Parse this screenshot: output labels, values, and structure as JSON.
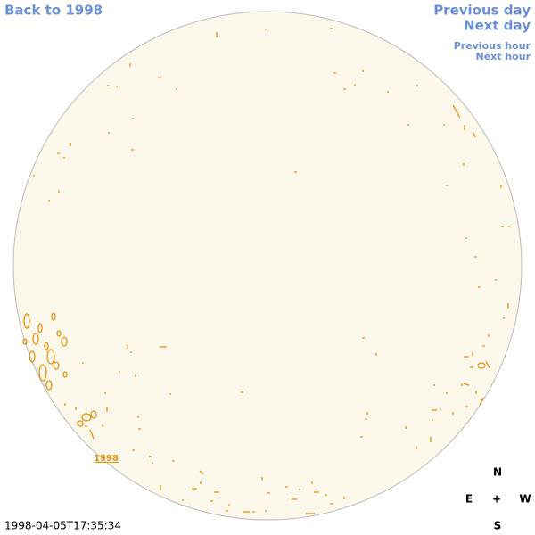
{
  "nav": {
    "back": "Back to 1998",
    "previous_day": "Previous day",
    "next_day": "Next day",
    "previous_hour": "Previous hour",
    "next_hour": "Next hour"
  },
  "disc": {
    "year_label": "1998"
  },
  "timestamp": "1998-04-05T17:35:34",
  "compass": {
    "north": "N",
    "east": "E",
    "center": "+",
    "west": "W",
    "south": "S"
  }
}
